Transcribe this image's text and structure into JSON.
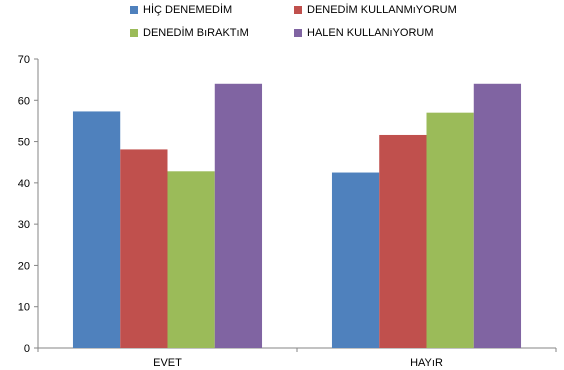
{
  "chart_data": {
    "type": "bar",
    "categories": [
      "EVET",
      "HAYıR"
    ],
    "series": [
      {
        "name": "HİÇ DENEMEDİM",
        "color": "#4f81bd",
        "values": [
          57.3,
          42.5
        ]
      },
      {
        "name": "DENEDİM KULLANMıYORUM",
        "color": "#c0504d",
        "values": [
          48.1,
          51.6
        ]
      },
      {
        "name": "DENEDİM BıRAKTıM",
        "color": "#9bbb59",
        "values": [
          42.8,
          57.0
        ]
      },
      {
        "name": "HALEN KULLANıYORUM",
        "color": "#8064a2",
        "values": [
          64.0,
          64.0
        ]
      }
    ],
    "ylim": [
      0,
      70
    ],
    "yticks": [
      0,
      10,
      20,
      30,
      40,
      50,
      60,
      70
    ],
    "grid": false,
    "legend": "top",
    "title": "",
    "xlabel": "",
    "ylabel": ""
  }
}
